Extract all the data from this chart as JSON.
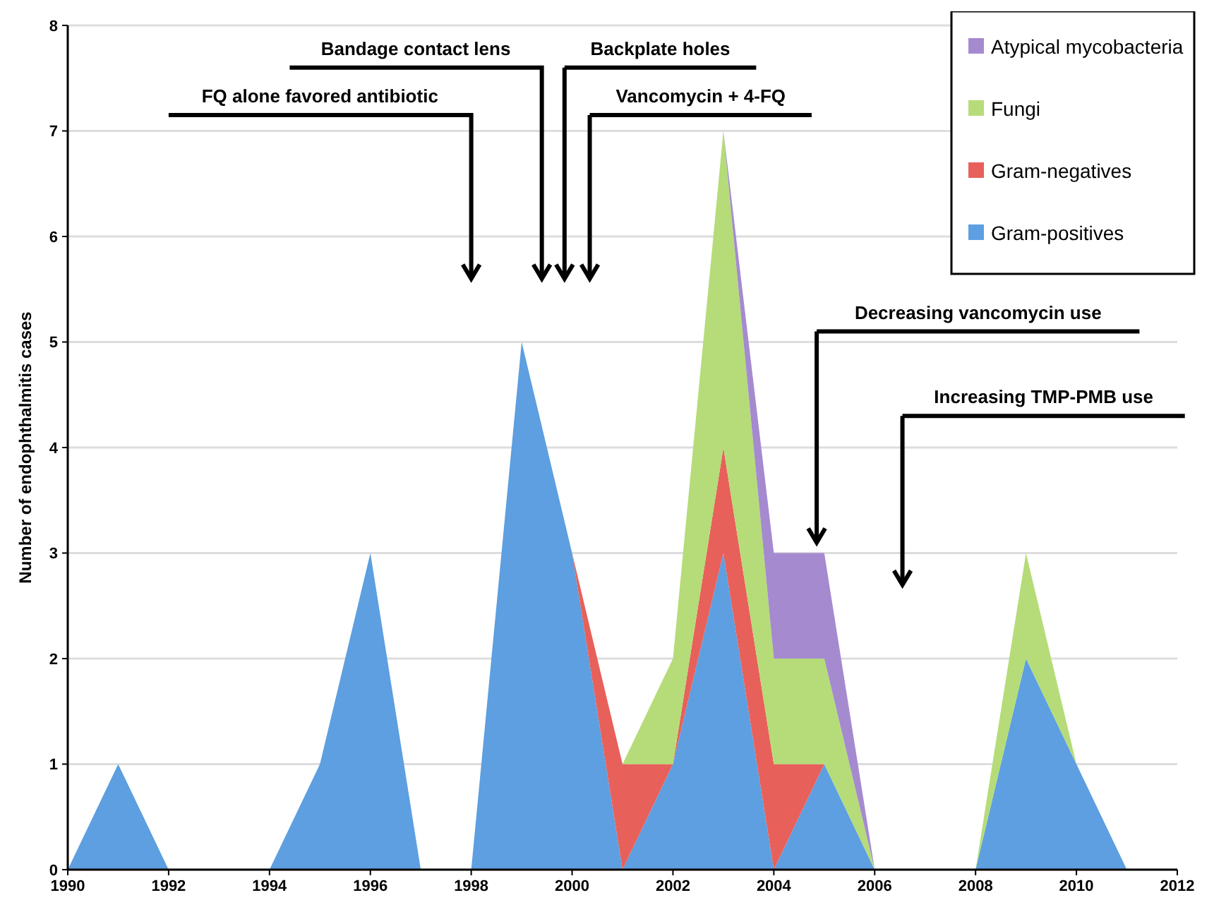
{
  "chart_data": {
    "type": "area",
    "stacked": true,
    "ylabel": "Number of endophthalmitis cases",
    "x": [
      1990,
      1991,
      1992,
      1993,
      1994,
      1995,
      1996,
      1997,
      1998,
      1999,
      2000,
      2001,
      2002,
      2003,
      2004,
      2005,
      2006,
      2007,
      2008,
      2009,
      2010,
      2011
    ],
    "series": [
      {
        "name": "Gram-positives",
        "color": "#5d9fe0",
        "values": [
          0,
          1,
          0,
          0,
          0,
          1,
          3,
          0,
          0,
          5,
          3,
          0,
          1,
          3,
          0,
          1,
          0,
          0,
          0,
          2,
          1,
          0
        ]
      },
      {
        "name": "Gram-negatives",
        "color": "#e8605a",
        "values": [
          null,
          null,
          null,
          null,
          null,
          null,
          null,
          null,
          null,
          null,
          0,
          1,
          0,
          1,
          1,
          0,
          null,
          null,
          null,
          null,
          null,
          null
        ]
      },
      {
        "name": "Fungi",
        "color": "#b5dc78",
        "values": [
          null,
          null,
          null,
          null,
          null,
          null,
          null,
          null,
          null,
          null,
          null,
          0,
          1,
          3,
          1,
          1,
          0,
          null,
          0,
          1,
          0,
          null
        ]
      },
      {
        "name": "Atypical mycobacteria",
        "color": "#a58ad0",
        "values": [
          null,
          null,
          null,
          null,
          null,
          null,
          null,
          null,
          null,
          null,
          null,
          null,
          null,
          0,
          1,
          1,
          0,
          null,
          null,
          null,
          null,
          null
        ]
      }
    ],
    "xlim": [
      1990,
      2012
    ],
    "xticks": [
      1990,
      1992,
      1994,
      1996,
      1998,
      2000,
      2002,
      2004,
      2006,
      2008,
      2010,
      2012
    ],
    "ylim": [
      0,
      8
    ],
    "yticks": [
      0,
      1,
      2,
      3,
      4,
      5,
      6,
      7,
      8
    ],
    "grid": "y",
    "legend": "top right",
    "annotations": [
      "FQ alone favored antibiotic",
      "Bandage contact lens",
      "Backplate holes",
      "Vancomycin + 4-FQ",
      "Decreasing vancomycin use",
      "Increasing TMP-PMB use"
    ]
  }
}
